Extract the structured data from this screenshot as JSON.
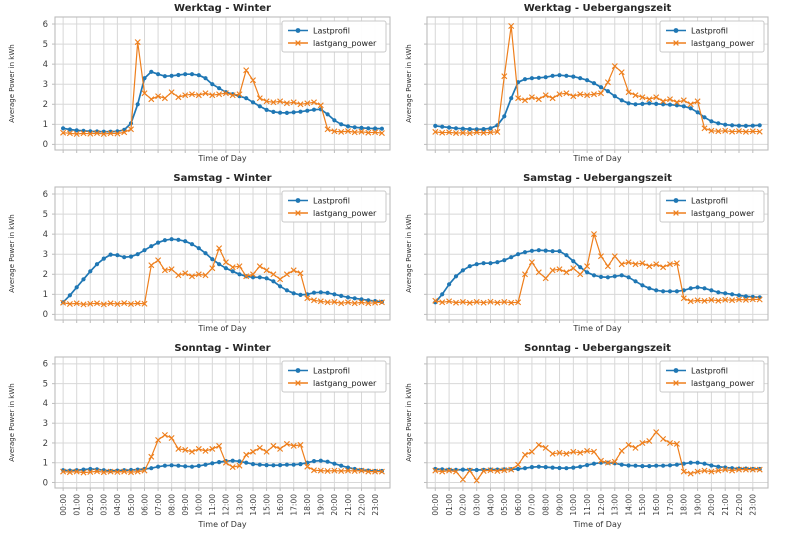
{
  "figure": {
    "background": "#ffffff",
    "grid_color": "#d8d8d8",
    "frame_color": "#bdbdbd",
    "text_color": "#333333",
    "tick_text_color": "#3c3c3c"
  },
  "legend": {
    "position": "upper right",
    "items": [
      {
        "label": "Lastprofil",
        "color": "#1f77b4",
        "marker": "circle"
      },
      {
        "label": "lastgang_power",
        "color": "#ee7f1d",
        "marker": "x"
      }
    ]
  },
  "axes": {
    "ylabel": "Average Power in kWh",
    "xlabel": "Time of Day",
    "yticks": [
      0,
      1,
      2,
      3,
      4,
      5,
      6
    ],
    "xtick_labels": [
      "00:00",
      "01:00",
      "02:00",
      "03:00",
      "04:00",
      "05:00",
      "06:00",
      "07:00",
      "08:00",
      "09:00",
      "10:00",
      "11:00",
      "12:00",
      "13:00",
      "14:00",
      "15:00",
      "16:00",
      "17:00",
      "18:00",
      "19:00",
      "20:00",
      "21:00",
      "22:00",
      "23:00"
    ]
  },
  "chart_data": [
    {
      "id": "werktag-winter",
      "type": "line",
      "title": "Werktag - Winter",
      "xlabel": "Time of Day",
      "ylabel": "Average Power in kWh",
      "ylim": [
        0,
        6
      ],
      "x_start": "00:00",
      "x_step_minutes": 30,
      "grid": true,
      "series": [
        {
          "name": "Lastprofil",
          "color": "#1f77b4",
          "marker": "circle",
          "values": [
            0.8,
            0.74,
            0.7,
            0.67,
            0.65,
            0.64,
            0.63,
            0.63,
            0.65,
            0.72,
            1.05,
            2.0,
            3.3,
            3.62,
            3.5,
            3.4,
            3.42,
            3.46,
            3.5,
            3.5,
            3.45,
            3.3,
            3.0,
            2.8,
            2.6,
            2.5,
            2.4,
            2.3,
            2.1,
            1.9,
            1.72,
            1.62,
            1.58,
            1.57,
            1.6,
            1.63,
            1.68,
            1.73,
            1.75,
            1.5,
            1.2,
            1.0,
            0.9,
            0.85,
            0.82,
            0.8,
            0.79,
            0.78
          ]
        },
        {
          "name": "lastgang_power",
          "color": "#ee7f1d",
          "marker": "x",
          "values": [
            0.58,
            0.55,
            0.52,
            0.55,
            0.53,
            0.56,
            0.52,
            0.55,
            0.54,
            0.6,
            0.75,
            5.1,
            2.55,
            2.25,
            2.4,
            2.3,
            2.6,
            2.35,
            2.45,
            2.5,
            2.45,
            2.55,
            2.45,
            2.5,
            2.55,
            2.45,
            2.5,
            3.7,
            3.2,
            2.3,
            2.15,
            2.1,
            2.15,
            2.05,
            2.1,
            2.0,
            2.05,
            2.1,
            1.95,
            0.75,
            0.65,
            0.62,
            0.66,
            0.6,
            0.63,
            0.58,
            0.6,
            0.56
          ]
        }
      ]
    },
    {
      "id": "werktag-uebergangszeit",
      "type": "line",
      "title": "Werktag - Uebergangszeit",
      "xlabel": "Time of Day",
      "ylabel": "Average Power in kWh",
      "ylim": [
        0,
        6
      ],
      "x_start": "00:00",
      "x_step_minutes": 30,
      "grid": true,
      "series": [
        {
          "name": "Lastprofil",
          "color": "#1f77b4",
          "marker": "circle",
          "values": [
            0.92,
            0.88,
            0.84,
            0.8,
            0.78,
            0.76,
            0.75,
            0.76,
            0.8,
            0.95,
            1.4,
            2.3,
            3.1,
            3.25,
            3.3,
            3.32,
            3.35,
            3.42,
            3.45,
            3.42,
            3.38,
            3.3,
            3.2,
            3.05,
            2.85,
            2.65,
            2.4,
            2.2,
            2.05,
            2.0,
            2.02,
            2.05,
            2.02,
            2.0,
            1.98,
            1.95,
            1.9,
            1.8,
            1.6,
            1.35,
            1.15,
            1.05,
            0.98,
            0.95,
            0.93,
            0.92,
            0.93,
            0.95
          ]
        },
        {
          "name": "lastgang_power",
          "color": "#ee7f1d",
          "marker": "x",
          "values": [
            0.62,
            0.58,
            0.6,
            0.56,
            0.58,
            0.55,
            0.6,
            0.57,
            0.6,
            0.62,
            3.4,
            5.9,
            2.3,
            2.2,
            2.35,
            2.25,
            2.45,
            2.3,
            2.5,
            2.55,
            2.4,
            2.5,
            2.45,
            2.5,
            2.55,
            3.1,
            3.9,
            3.6,
            2.6,
            2.45,
            2.35,
            2.25,
            2.35,
            2.15,
            2.25,
            2.1,
            2.2,
            2.0,
            2.15,
            0.8,
            0.68,
            0.65,
            0.68,
            0.63,
            0.66,
            0.62,
            0.65,
            0.63
          ]
        }
      ]
    },
    {
      "id": "samstag-winter",
      "type": "line",
      "title": "Samstag - Winter",
      "xlabel": "Time of Day",
      "ylabel": "Average Power in kWh",
      "ylim": [
        0,
        6
      ],
      "x_start": "00:00",
      "x_step_minutes": 30,
      "grid": true,
      "series": [
        {
          "name": "Lastprofil",
          "color": "#1f77b4",
          "marker": "circle",
          "values": [
            0.6,
            0.95,
            1.35,
            1.75,
            2.15,
            2.5,
            2.78,
            2.98,
            2.95,
            2.85,
            2.88,
            3.0,
            3.2,
            3.4,
            3.58,
            3.7,
            3.75,
            3.72,
            3.65,
            3.5,
            3.3,
            3.05,
            2.75,
            2.5,
            2.3,
            2.15,
            2.0,
            1.9,
            1.85,
            1.85,
            1.8,
            1.65,
            1.4,
            1.2,
            1.05,
            0.97,
            1.0,
            1.08,
            1.1,
            1.07,
            1.0,
            0.92,
            0.85,
            0.8,
            0.75,
            0.7,
            0.66,
            0.62
          ]
        },
        {
          "name": "lastgang_power",
          "color": "#ee7f1d",
          "marker": "x",
          "values": [
            0.58,
            0.52,
            0.55,
            0.5,
            0.53,
            0.55,
            0.5,
            0.55,
            0.52,
            0.56,
            0.52,
            0.55,
            0.53,
            2.45,
            2.7,
            2.2,
            2.25,
            1.95,
            2.05,
            1.9,
            2.0,
            1.95,
            2.3,
            3.3,
            2.6,
            2.35,
            2.4,
            1.9,
            2.0,
            2.4,
            2.2,
            2.0,
            1.75,
            2.0,
            2.2,
            2.05,
            0.8,
            0.7,
            0.65,
            0.6,
            0.62,
            0.55,
            0.6,
            0.55,
            0.6,
            0.55,
            0.58,
            0.6
          ]
        }
      ]
    },
    {
      "id": "samstag-uebergangszeit",
      "type": "line",
      "title": "Samstag - Uebergangszeit",
      "xlabel": "Time of Day",
      "ylabel": "Average Power in kWh",
      "ylim": [
        0,
        6
      ],
      "x_start": "00:00",
      "x_step_minutes": 30,
      "grid": true,
      "series": [
        {
          "name": "Lastprofil",
          "color": "#1f77b4",
          "marker": "circle",
          "values": [
            0.6,
            1.0,
            1.5,
            1.9,
            2.2,
            2.4,
            2.5,
            2.55,
            2.55,
            2.6,
            2.7,
            2.85,
            3.0,
            3.1,
            3.17,
            3.2,
            3.18,
            3.15,
            3.15,
            2.95,
            2.65,
            2.35,
            2.1,
            1.95,
            1.87,
            1.85,
            1.9,
            1.95,
            1.85,
            1.65,
            1.45,
            1.3,
            1.2,
            1.15,
            1.15,
            1.15,
            1.2,
            1.3,
            1.35,
            1.3,
            1.2,
            1.1,
            1.05,
            1.0,
            0.95,
            0.9,
            0.87,
            0.85
          ]
        },
        {
          "name": "lastgang_power",
          "color": "#ee7f1d",
          "marker": "x",
          "values": [
            0.68,
            0.6,
            0.65,
            0.58,
            0.62,
            0.57,
            0.62,
            0.58,
            0.63,
            0.58,
            0.62,
            0.58,
            0.6,
            2.0,
            2.6,
            2.1,
            1.8,
            2.2,
            2.25,
            2.1,
            2.3,
            2.0,
            2.4,
            4.0,
            2.9,
            2.4,
            2.9,
            2.5,
            2.6,
            2.5,
            2.55,
            2.4,
            2.5,
            2.35,
            2.5,
            2.55,
            0.8,
            0.65,
            0.7,
            0.67,
            0.72,
            0.68,
            0.73,
            0.7,
            0.74,
            0.72,
            0.75,
            0.74
          ]
        }
      ]
    },
    {
      "id": "sonntag-winter",
      "type": "line",
      "title": "Sonntag - Winter",
      "xlabel": "Time of Day",
      "ylabel": "Average Power in kWh",
      "ylim": [
        0,
        6
      ],
      "x_start": "00:00",
      "x_step_minutes": 30,
      "grid": true,
      "series": [
        {
          "name": "Lastprofil",
          "color": "#1f77b4",
          "marker": "circle",
          "values": [
            0.62,
            0.6,
            0.62,
            0.65,
            0.68,
            0.66,
            0.62,
            0.58,
            0.6,
            0.62,
            0.63,
            0.65,
            0.68,
            0.72,
            0.8,
            0.85,
            0.87,
            0.85,
            0.82,
            0.8,
            0.84,
            0.9,
            0.97,
            1.03,
            1.08,
            1.1,
            1.07,
            1.0,
            0.93,
            0.9,
            0.88,
            0.87,
            0.88,
            0.9,
            0.9,
            0.93,
            1.0,
            1.08,
            1.1,
            1.05,
            0.95,
            0.85,
            0.75,
            0.68,
            0.63,
            0.6,
            0.58,
            0.58
          ]
        },
        {
          "name": "lastgang_power",
          "color": "#ee7f1d",
          "marker": "x",
          "values": [
            0.55,
            0.52,
            0.55,
            0.5,
            0.53,
            0.56,
            0.52,
            0.55,
            0.53,
            0.55,
            0.52,
            0.55,
            0.6,
            1.3,
            2.15,
            2.4,
            2.25,
            1.7,
            1.65,
            1.55,
            1.7,
            1.6,
            1.7,
            1.85,
            1.0,
            0.78,
            0.85,
            1.4,
            1.55,
            1.75,
            1.55,
            1.85,
            1.7,
            1.95,
            1.85,
            1.9,
            0.8,
            0.62,
            0.6,
            0.58,
            0.6,
            0.58,
            0.6,
            0.58,
            0.6,
            0.55,
            0.55,
            0.55
          ]
        }
      ]
    },
    {
      "id": "sonntag-uebergangszeit",
      "type": "line",
      "title": "Sonntag - Uebergangszeit",
      "xlabel": "Time of Day",
      "ylabel": "Average Power in kWh",
      "ylim": [
        0,
        6
      ],
      "x_start": "00:00",
      "x_step_minutes": 30,
      "grid": true,
      "series": [
        {
          "name": "Lastprofil",
          "color": "#1f77b4",
          "marker": "circle",
          "values": [
            0.68,
            0.66,
            0.65,
            0.64,
            0.65,
            0.64,
            0.63,
            0.64,
            0.65,
            0.65,
            0.66,
            0.67,
            0.68,
            0.72,
            0.78,
            0.8,
            0.78,
            0.75,
            0.73,
            0.72,
            0.75,
            0.8,
            0.88,
            0.95,
            1.0,
            1.0,
            0.97,
            0.9,
            0.86,
            0.85,
            0.83,
            0.83,
            0.85,
            0.85,
            0.87,
            0.9,
            0.95,
            1.0,
            1.0,
            0.95,
            0.86,
            0.8,
            0.76,
            0.72,
            0.7,
            0.7,
            0.68,
            0.68
          ]
        },
        {
          "name": "lastgang_power",
          "color": "#ee7f1d",
          "marker": "x",
          "values": [
            0.6,
            0.55,
            0.6,
            0.55,
            0.15,
            0.6,
            0.1,
            0.58,
            0.62,
            0.58,
            0.62,
            0.65,
            0.9,
            1.4,
            1.55,
            1.9,
            1.75,
            1.45,
            1.5,
            1.45,
            1.55,
            1.5,
            1.6,
            1.55,
            1.1,
            1.0,
            1.05,
            1.6,
            1.9,
            1.75,
            2.0,
            2.1,
            2.55,
            2.2,
            2.0,
            1.95,
            0.55,
            0.45,
            0.55,
            0.6,
            0.55,
            0.6,
            0.65,
            0.6,
            0.65,
            0.65,
            0.65,
            0.65
          ]
        }
      ]
    }
  ]
}
